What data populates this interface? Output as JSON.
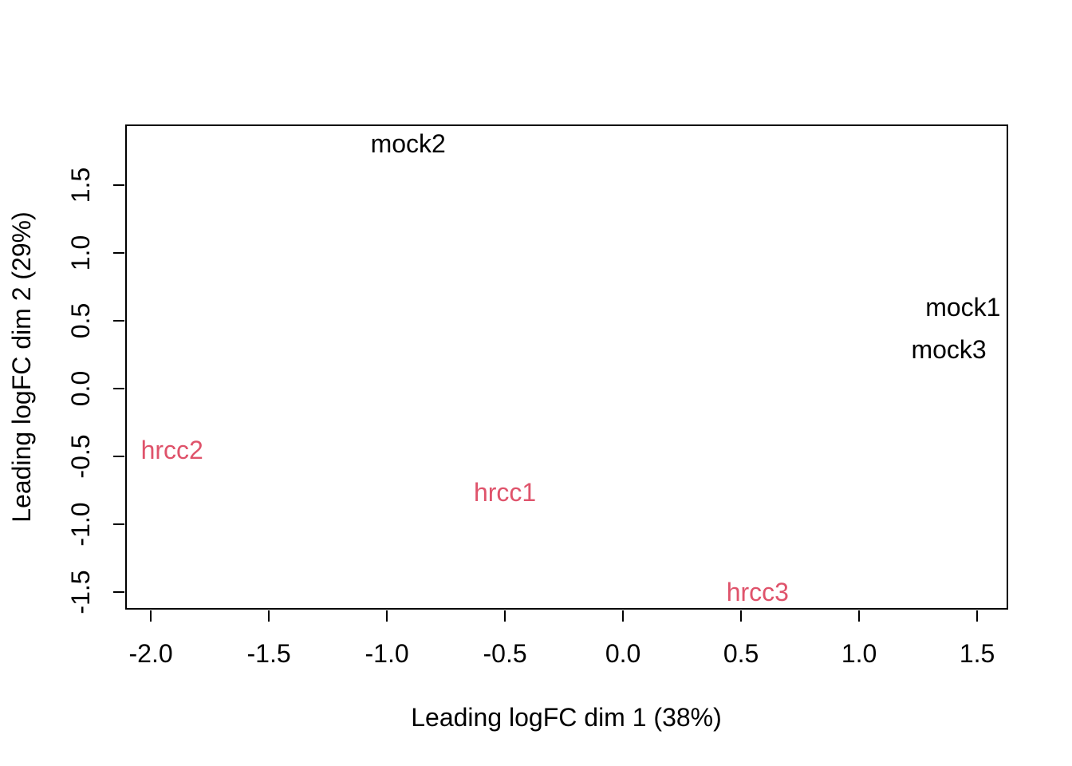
{
  "chart_data": {
    "type": "scatter",
    "variant": "mds-plot-text-labels",
    "title": "",
    "xlabel": "Leading logFC dim 1 (38%)",
    "ylabel": "Leading logFC dim 2 (29%)",
    "grid": false,
    "legend_position": "none",
    "x_axis": {
      "ticks": [
        -2.0,
        -1.5,
        -1.0,
        -0.5,
        0.0,
        0.5,
        1.0,
        1.5
      ],
      "range": [
        -2.105,
        1.628
      ]
    },
    "y_axis": {
      "ticks": [
        -1.5,
        -1.0,
        -0.5,
        0.0,
        0.5,
        1.0,
        1.5
      ],
      "range": [
        -1.622,
        1.944
      ]
    },
    "colors": {
      "mock_group": "#000000",
      "hrcc_group": "#DF536B",
      "frame": "#000000",
      "background": "#ffffff"
    },
    "series": [
      {
        "name": "mock",
        "color": "#000000",
        "points": [
          {
            "label": "mock1",
            "x": 1.44,
            "y": 0.6
          },
          {
            "label": "mock2",
            "x": -0.91,
            "y": 1.81
          },
          {
            "label": "mock3",
            "x": 1.38,
            "y": 0.29
          }
        ]
      },
      {
        "name": "hrcc",
        "color": "#DF536B",
        "points": [
          {
            "label": "hrcc1",
            "x": -0.5,
            "y": -0.76
          },
          {
            "label": "hrcc2",
            "x": -1.91,
            "y": -0.45
          },
          {
            "label": "hrcc3",
            "x": 0.57,
            "y": -1.5
          }
        ]
      }
    ]
  }
}
